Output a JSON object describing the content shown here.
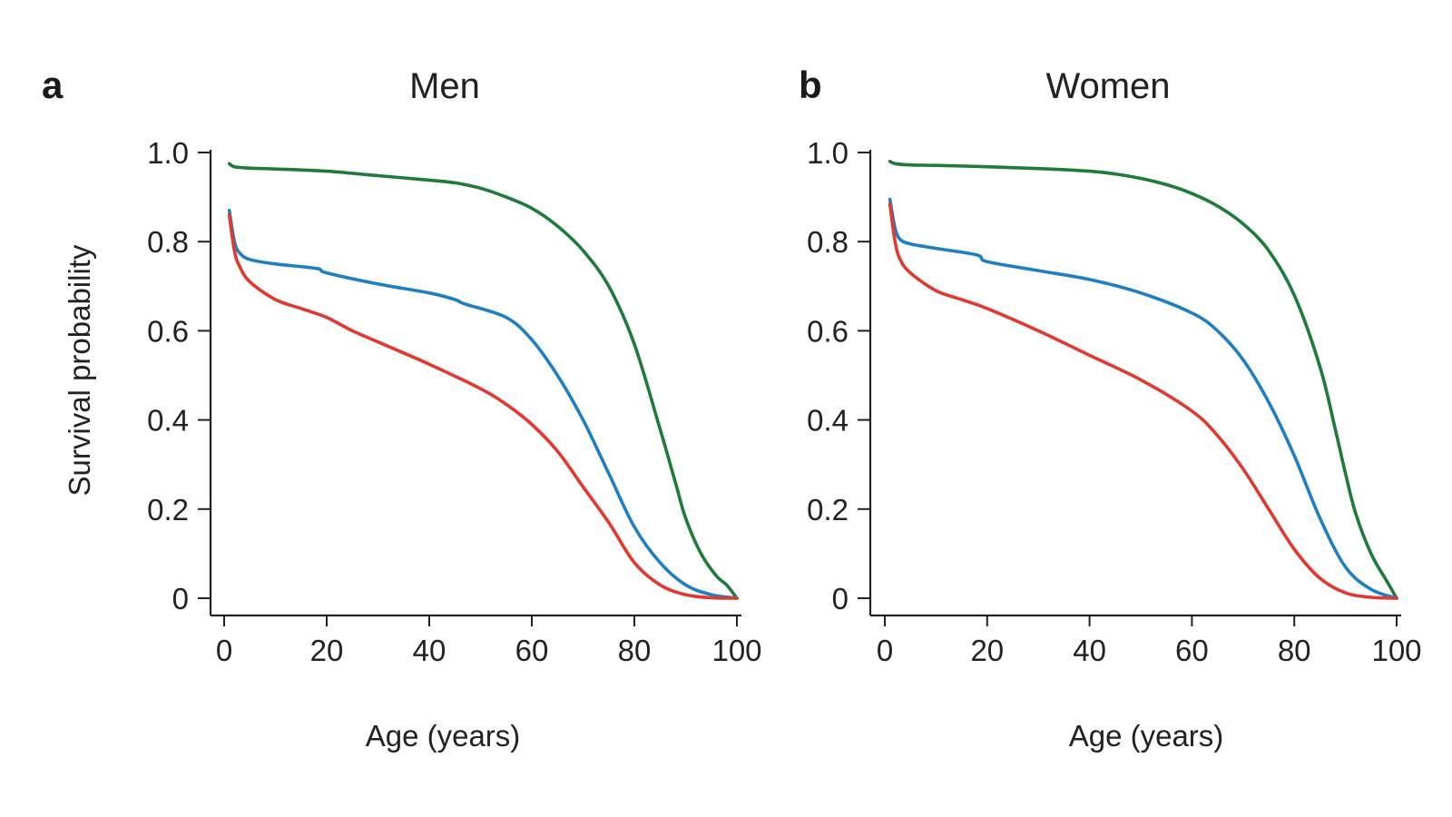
{
  "figure": {
    "ylabel": "Survival probability",
    "xlabel": "Age (years)"
  },
  "colors": {
    "red": "#e2382f",
    "blue": "#1f7fc4",
    "green": "#1e7b3a"
  },
  "chart_data": [
    {
      "type": "line",
      "panel": "a",
      "title": "Men",
      "xlabel": "Age (years)",
      "ylabel": "Survival probability",
      "xlim": [
        0,
        100
      ],
      "ylim": [
        0,
        1.0
      ],
      "xticks": [
        0,
        20,
        40,
        60,
        80,
        100
      ],
      "yticks": [
        0,
        0.2,
        0.4,
        0.6,
        0.8,
        1.0
      ],
      "ytick_labels": [
        "0",
        "0.2",
        "0.4",
        "0.6",
        "0.8",
        "1.0"
      ],
      "grid": false,
      "series": [
        {
          "color": "#1e7b3a",
          "x": [
            1,
            2,
            5,
            10,
            20,
            30,
            40,
            45,
            50,
            55,
            60,
            65,
            70,
            75,
            80,
            85,
            88,
            90,
            93,
            96,
            98,
            100
          ],
          "y": [
            0.975,
            0.968,
            0.965,
            0.963,
            0.958,
            0.948,
            0.938,
            0.932,
            0.92,
            0.9,
            0.875,
            0.835,
            0.78,
            0.7,
            0.57,
            0.38,
            0.26,
            0.18,
            0.1,
            0.05,
            0.03,
            0.0
          ]
        },
        {
          "color": "#1f7fc4",
          "x": [
            1,
            2,
            3,
            5,
            10,
            18,
            20,
            30,
            40,
            45,
            47,
            55,
            60,
            65,
            70,
            75,
            80,
            85,
            90,
            95,
            100
          ],
          "y": [
            0.87,
            0.8,
            0.775,
            0.76,
            0.75,
            0.74,
            0.73,
            0.705,
            0.685,
            0.67,
            0.66,
            0.63,
            0.58,
            0.5,
            0.4,
            0.28,
            0.16,
            0.08,
            0.03,
            0.008,
            0.0
          ]
        },
        {
          "color": "#e2382f",
          "x": [
            1,
            2,
            3,
            5,
            10,
            15,
            20,
            25,
            30,
            40,
            50,
            55,
            60,
            65,
            70,
            75,
            80,
            85,
            90,
            95,
            100
          ],
          "y": [
            0.86,
            0.78,
            0.745,
            0.71,
            0.67,
            0.65,
            0.63,
            0.6,
            0.575,
            0.525,
            0.47,
            0.435,
            0.39,
            0.33,
            0.25,
            0.17,
            0.08,
            0.03,
            0.008,
            0.001,
            0.0
          ]
        }
      ]
    },
    {
      "type": "line",
      "panel": "b",
      "title": "Women",
      "xlabel": "Age (years)",
      "ylabel": "",
      "xlim": [
        0,
        100
      ],
      "ylim": [
        0,
        1.0
      ],
      "xticks": [
        0,
        20,
        40,
        60,
        80,
        100
      ],
      "yticks": [
        0,
        0.2,
        0.4,
        0.6,
        0.8,
        1.0
      ],
      "ytick_labels": [
        "0",
        "0.2",
        "0.4",
        "0.6",
        "0.8",
        "1.0"
      ],
      "grid": false,
      "series": [
        {
          "color": "#1e7b3a",
          "x": [
            1,
            2,
            5,
            10,
            20,
            30,
            40,
            45,
            50,
            55,
            60,
            65,
            70,
            75,
            80,
            85,
            88,
            90,
            92,
            95,
            98,
            99,
            100
          ],
          "y": [
            0.98,
            0.975,
            0.972,
            0.971,
            0.968,
            0.964,
            0.958,
            0.952,
            0.942,
            0.928,
            0.908,
            0.88,
            0.84,
            0.78,
            0.68,
            0.52,
            0.38,
            0.28,
            0.19,
            0.1,
            0.04,
            0.02,
            0.0
          ]
        },
        {
          "color": "#1f7fc4",
          "x": [
            1,
            2,
            3,
            5,
            10,
            18,
            20,
            30,
            40,
            50,
            60,
            65,
            70,
            75,
            80,
            85,
            90,
            95,
            100
          ],
          "y": [
            0.895,
            0.83,
            0.805,
            0.795,
            0.785,
            0.77,
            0.755,
            0.735,
            0.715,
            0.685,
            0.64,
            0.6,
            0.535,
            0.44,
            0.32,
            0.18,
            0.07,
            0.02,
            0.0
          ]
        },
        {
          "color": "#e2382f",
          "x": [
            1,
            2,
            3,
            5,
            10,
            15,
            20,
            30,
            40,
            50,
            60,
            65,
            70,
            75,
            80,
            85,
            90,
            95,
            100
          ],
          "y": [
            0.885,
            0.8,
            0.76,
            0.73,
            0.69,
            0.67,
            0.65,
            0.6,
            0.545,
            0.49,
            0.42,
            0.365,
            0.29,
            0.2,
            0.11,
            0.045,
            0.012,
            0.002,
            0.0
          ]
        }
      ]
    }
  ]
}
